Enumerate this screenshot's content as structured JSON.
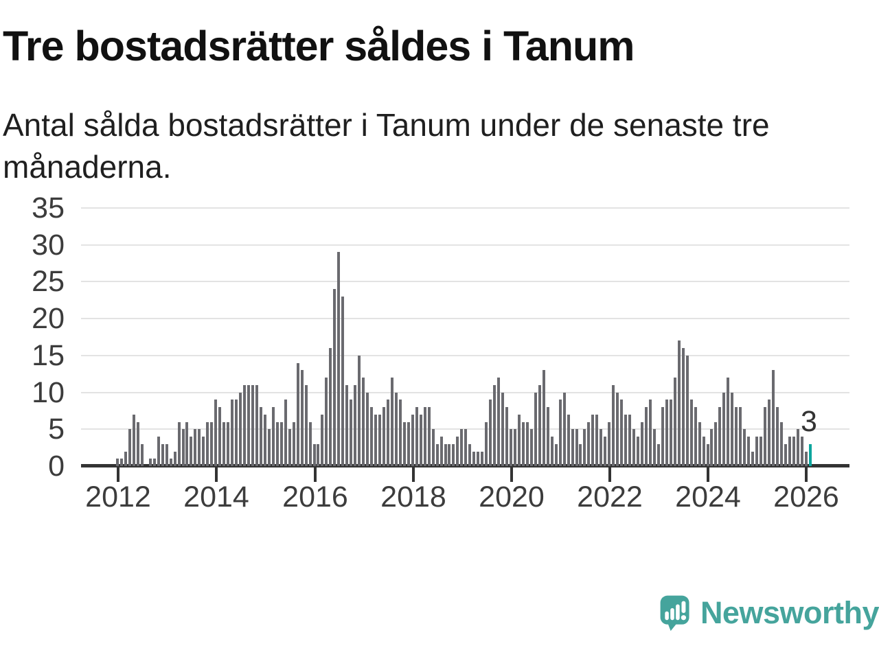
{
  "title": "Tre bostadsrätter såldes i Tanum",
  "subtitle": "Antal sålda bostadsrätter i Tanum under de senaste tre månaderna.",
  "annotation": {
    "last_value_label": "3"
  },
  "logo": {
    "text": "Newsworthy"
  },
  "colors": {
    "bar": "#6a6a6f",
    "highlight": "#0ca59d",
    "grid": "#e3e3e3",
    "axis": "#333333",
    "tick_text": "#3c3c3c",
    "logo": "#45a49c"
  },
  "chart_data": {
    "type": "bar",
    "title": "Tre bostadsrätter såldes i Tanum",
    "subtitle": "Antal sålda bostadsrätter i Tanum under de senaste tre månaderna.",
    "ylabel": "",
    "xlabel": "",
    "ylim": [
      0,
      35
    ],
    "ytick_labels": [
      "0",
      "5",
      "10",
      "15",
      "20",
      "25",
      "30",
      "35"
    ],
    "xtick_labels": [
      "2012",
      "2014",
      "2016",
      "2018",
      "2020",
      "2022",
      "2024",
      "2026"
    ],
    "grid": "horizontal",
    "legend": "none",
    "x_range_months": "2012-01 to 2026-01, monthly",
    "highlight_last": true,
    "last_value": 3,
    "series": [
      {
        "name": "Antal sålda bostadsrätter (rullande tre månader)",
        "values": [
          1,
          1,
          2,
          5,
          7,
          6,
          3,
          0,
          1,
          1,
          4,
          3,
          3,
          1,
          2,
          6,
          5,
          6,
          4,
          5,
          5,
          4,
          6,
          6,
          9,
          8,
          6,
          6,
          9,
          9,
          10,
          11,
          11,
          11,
          11,
          8,
          7,
          5,
          8,
          6,
          6,
          9,
          5,
          6,
          14,
          13,
          11,
          6,
          3,
          3,
          7,
          12,
          16,
          24,
          29,
          23,
          11,
          9,
          11,
          15,
          12,
          10,
          8,
          7,
          7,
          8,
          9,
          12,
          10,
          9,
          6,
          6,
          7,
          8,
          7,
          8,
          8,
          5,
          3,
          4,
          3,
          3,
          3,
          4,
          5,
          5,
          3,
          2,
          2,
          2,
          6,
          9,
          11,
          12,
          10,
          8,
          5,
          5,
          7,
          6,
          6,
          5,
          10,
          11,
          13,
          8,
          4,
          3,
          9,
          10,
          7,
          5,
          5,
          3,
          5,
          6,
          7,
          7,
          5,
          4,
          6,
          11,
          10,
          9,
          7,
          7,
          5,
          4,
          6,
          8,
          9,
          5,
          3,
          8,
          9,
          9,
          12,
          17,
          16,
          15,
          9,
          8,
          6,
          4,
          3,
          5,
          6,
          8,
          10,
          12,
          10,
          8,
          8,
          5,
          4,
          2,
          4,
          4,
          8,
          9,
          13,
          8,
          6,
          3,
          4,
          4,
          5,
          4,
          2,
          3
        ]
      }
    ]
  }
}
